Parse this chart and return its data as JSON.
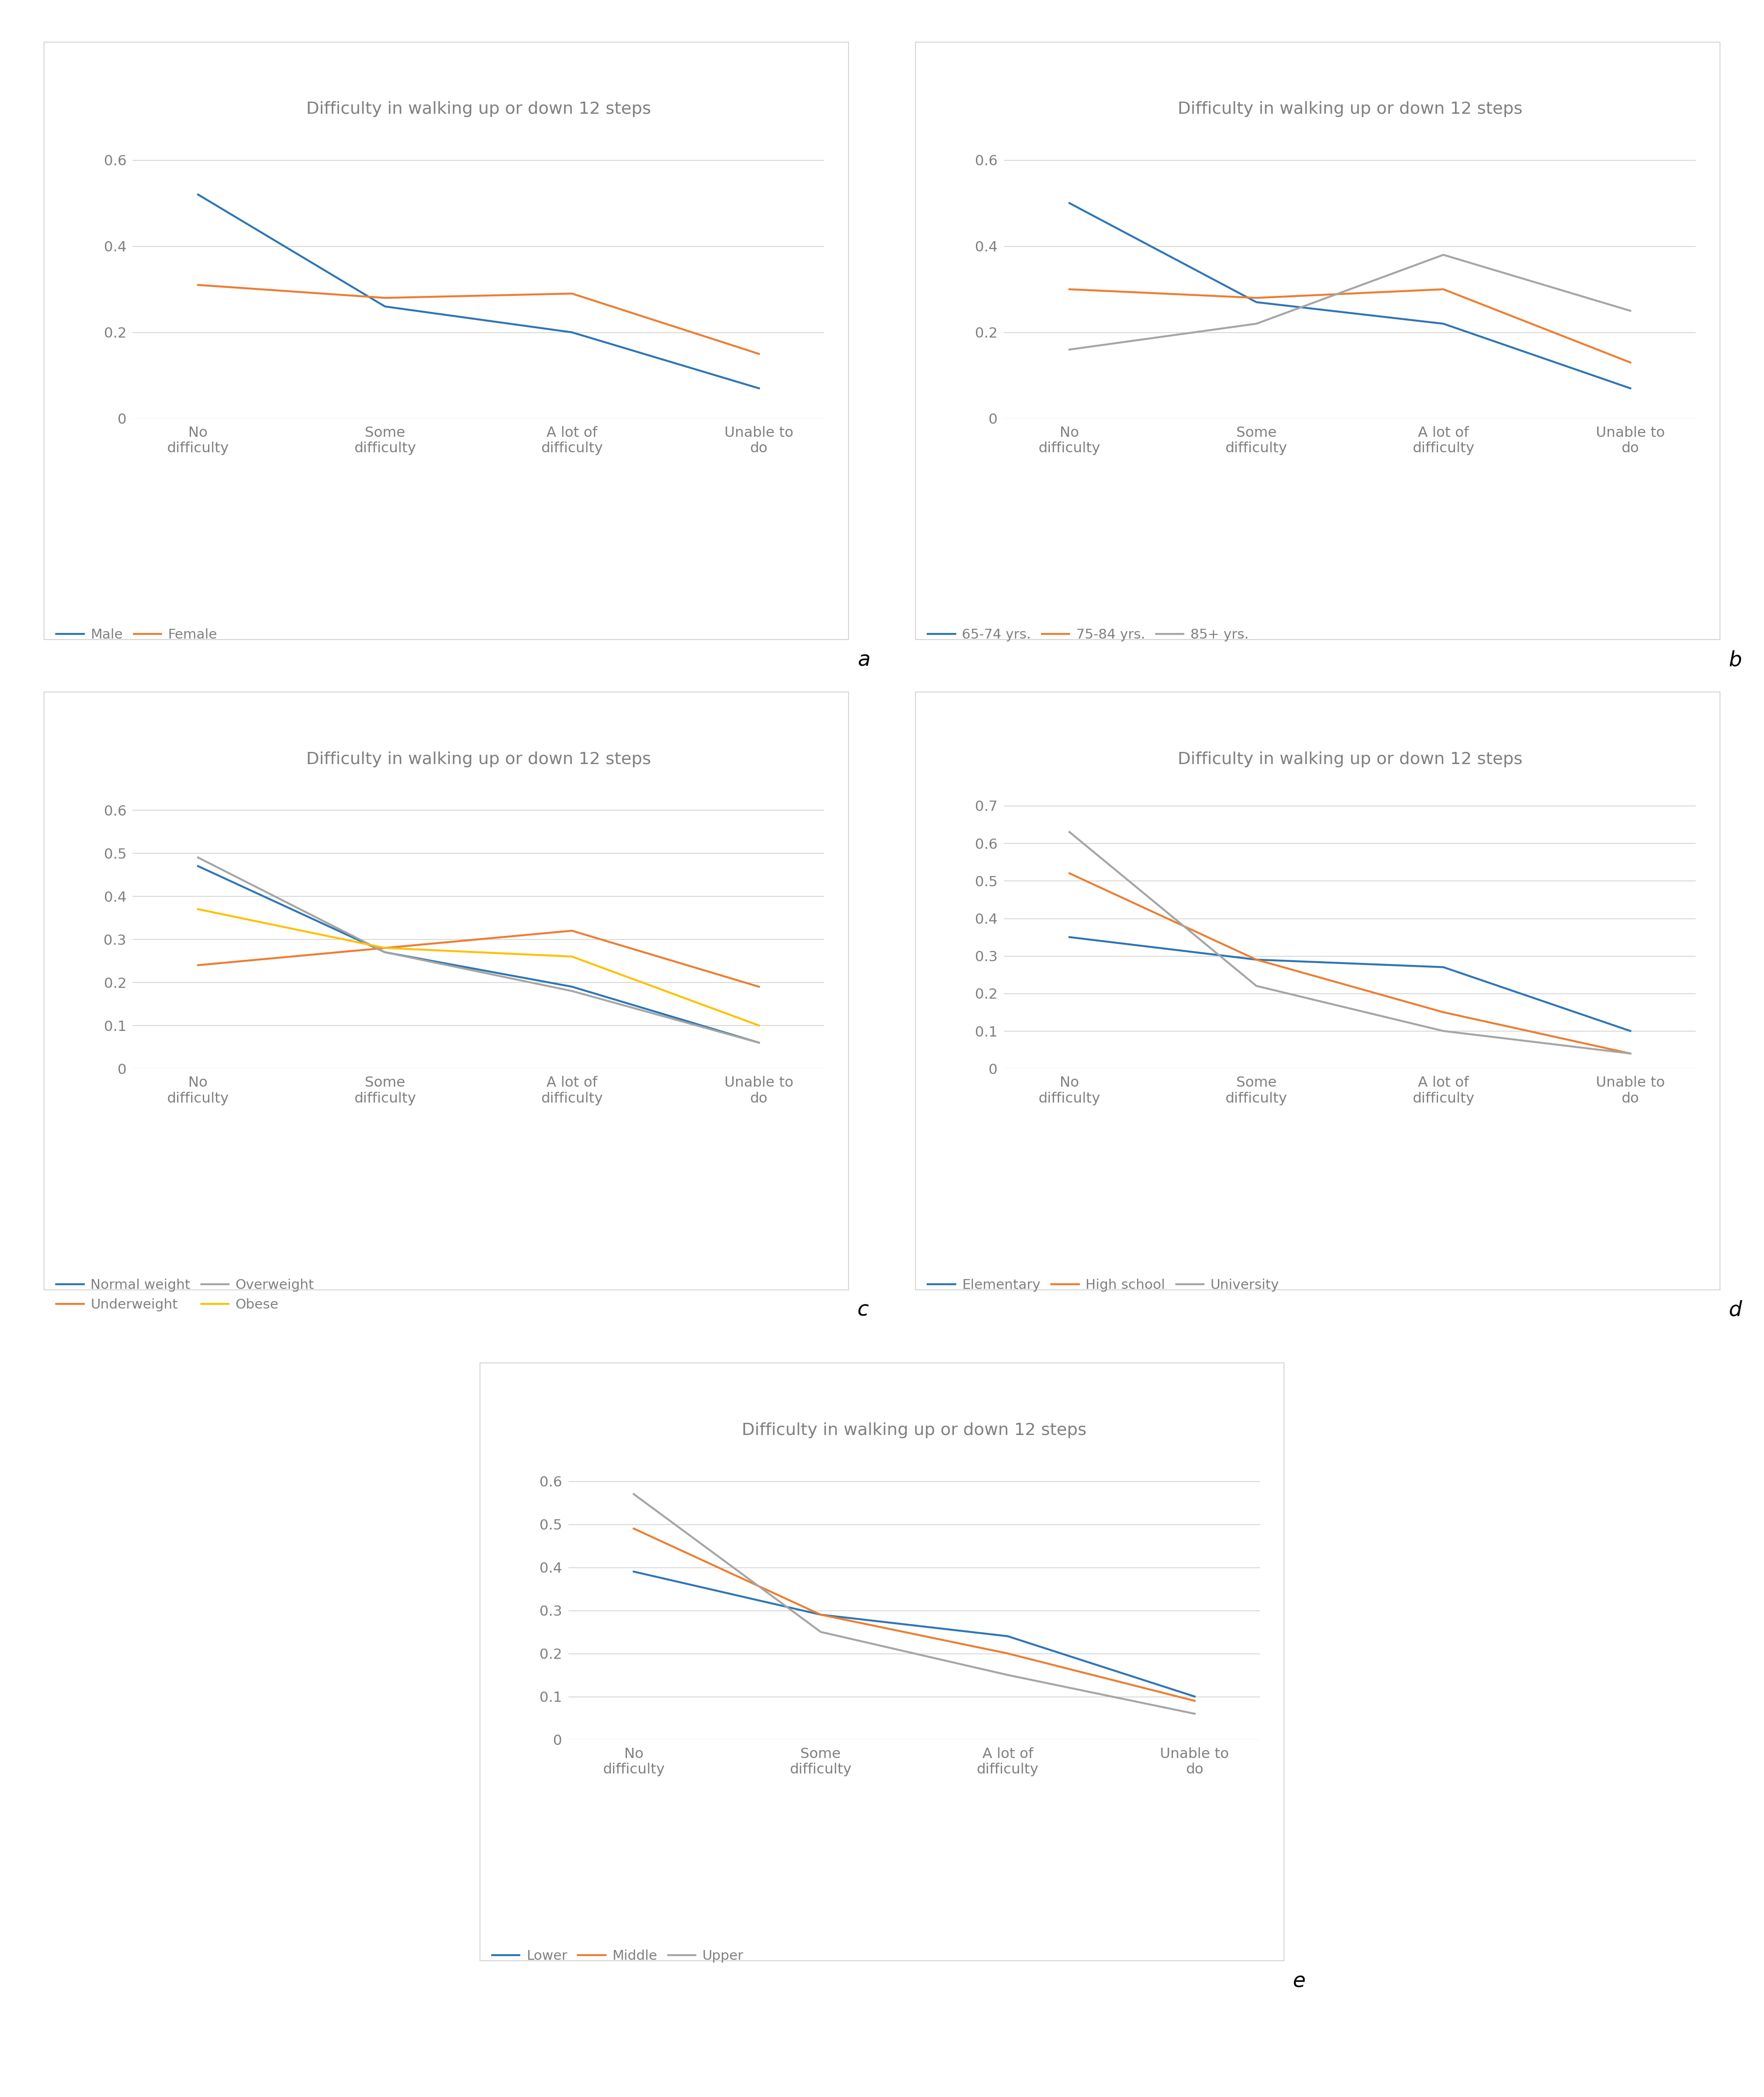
{
  "title": "Difficulty in walking up or down 12 steps",
  "x_labels": [
    "No\ndifficulty",
    "Some\ndifficulty",
    "A lot of\ndifficulty",
    "Unable to\ndo"
  ],
  "panels": [
    {
      "label": "a",
      "ylim": [
        0,
        0.68
      ],
      "yticks": [
        0,
        0.2,
        0.4,
        0.6
      ],
      "ytick_labels": [
        "0",
        "0.2",
        "0.4",
        "0.6"
      ],
      "legend_ncol": 2,
      "series": [
        {
          "name": "Male",
          "color": "#2E75B6",
          "values": [
            0.52,
            0.26,
            0.2,
            0.07
          ]
        },
        {
          "name": "Female",
          "color": "#ED7D31",
          "values": [
            0.31,
            0.28,
            0.29,
            0.15
          ]
        }
      ]
    },
    {
      "label": "b",
      "ylim": [
        0,
        0.68
      ],
      "yticks": [
        0,
        0.2,
        0.4,
        0.6
      ],
      "ytick_labels": [
        "0",
        "0.2",
        "0.4",
        "0.6"
      ],
      "legend_ncol": 3,
      "series": [
        {
          "name": "65-74 yrs.",
          "color": "#2E75B6",
          "values": [
            0.5,
            0.27,
            0.22,
            0.07
          ]
        },
        {
          "name": "75-84 yrs.",
          "color": "#ED7D31",
          "values": [
            0.3,
            0.28,
            0.3,
            0.13
          ]
        },
        {
          "name": "85+ yrs.",
          "color": "#A5A5A5",
          "values": [
            0.16,
            0.22,
            0.38,
            0.25
          ]
        }
      ]
    },
    {
      "label": "c",
      "ylim": [
        0,
        0.68
      ],
      "yticks": [
        0,
        0.1,
        0.2,
        0.3,
        0.4,
        0.5,
        0.6
      ],
      "ytick_labels": [
        "0",
        "0.1",
        "0.2",
        "0.3",
        "0.4",
        "0.5",
        "0.6"
      ],
      "legend_ncol": 2,
      "series": [
        {
          "name": "Normal weight",
          "color": "#2E75B6",
          "values": [
            0.47,
            0.27,
            0.19,
            0.06
          ]
        },
        {
          "name": "Underweight",
          "color": "#ED7D31",
          "values": [
            0.24,
            0.28,
            0.32,
            0.19
          ]
        },
        {
          "name": "Overweight",
          "color": "#A5A5A5",
          "values": [
            0.49,
            0.27,
            0.18,
            0.06
          ]
        },
        {
          "name": "Obese",
          "color": "#FFC000",
          "values": [
            0.37,
            0.28,
            0.26,
            0.1
          ]
        }
      ]
    },
    {
      "label": "d",
      "ylim": [
        0,
        0.78
      ],
      "yticks": [
        0,
        0.1,
        0.2,
        0.3,
        0.4,
        0.5,
        0.6,
        0.7
      ],
      "ytick_labels": [
        "0",
        "0.1",
        "0.2",
        "0.3",
        "0.4",
        "0.5",
        "0.6",
        "0.7"
      ],
      "legend_ncol": 3,
      "series": [
        {
          "name": "Elementary",
          "color": "#2E75B6",
          "values": [
            0.35,
            0.29,
            0.27,
            0.1
          ]
        },
        {
          "name": "High school",
          "color": "#ED7D31",
          "values": [
            0.52,
            0.29,
            0.15,
            0.04
          ]
        },
        {
          "name": "University",
          "color": "#A5A5A5",
          "values": [
            0.63,
            0.22,
            0.1,
            0.04
          ]
        }
      ]
    },
    {
      "label": "e",
      "ylim": [
        0,
        0.68
      ],
      "yticks": [
        0,
        0.1,
        0.2,
        0.3,
        0.4,
        0.5,
        0.6
      ],
      "ytick_labels": [
        "0",
        "0.1",
        "0.2",
        "0.3",
        "0.4",
        "0.5",
        "0.6"
      ],
      "legend_ncol": 3,
      "series": [
        {
          "name": "Lower",
          "color": "#2E75B6",
          "values": [
            0.39,
            0.29,
            0.24,
            0.1
          ]
        },
        {
          "name": "Middle",
          "color": "#ED7D31",
          "values": [
            0.49,
            0.29,
            0.2,
            0.09
          ]
        },
        {
          "name": "Upper",
          "color": "#A5A5A5",
          "values": [
            0.57,
            0.25,
            0.15,
            0.06
          ]
        }
      ]
    }
  ],
  "background_color": "#FFFFFF",
  "panel_bg": "#FFFFFF",
  "panel_border_color": "#CCCCCC",
  "grid_color": "#C8C8C8",
  "title_color": "#808080",
  "tick_color": "#808080",
  "label_color": "#808080",
  "line_width": 3.0,
  "title_fontsize": 26,
  "tick_fontsize": 22,
  "legend_fontsize": 21,
  "panel_label_fontsize": 32
}
